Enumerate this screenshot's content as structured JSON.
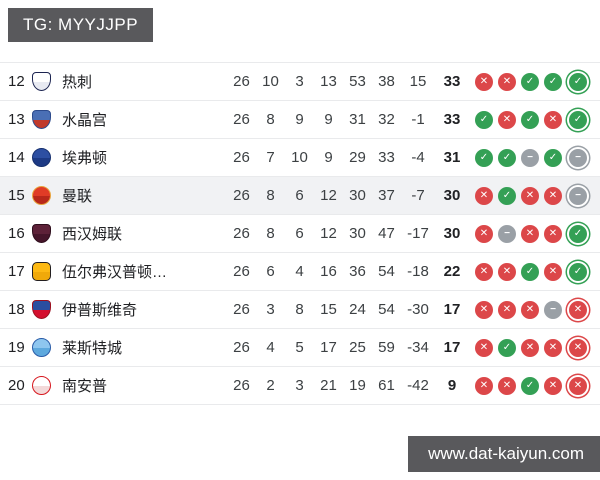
{
  "banner": {
    "text": "TG: MYYJJPP"
  },
  "watermark": {
    "text": "www.dat-kaiyun.com"
  },
  "colors": {
    "win": "#34a055",
    "loss": "#dc4749",
    "draw": "#9aa0a6",
    "row_highlight": "#f1f2f4",
    "banner_bg": "#59595c",
    "row_border": "#e9eaec"
  },
  "icons": {
    "win": "✓",
    "loss": "✕",
    "draw": "−"
  },
  "table": {
    "rows": [
      {
        "pos": "12",
        "team": "热刺",
        "played": "26",
        "wins": "10",
        "draws": "3",
        "losses": "13",
        "goals_for": "53",
        "goals_against": "38",
        "goal_diff": "15",
        "points": "33",
        "form": [
          "loss",
          "loss",
          "win",
          "win",
          "win"
        ],
        "highlighted": false,
        "badge": {
          "shape": "shield",
          "color1": "#ffffff",
          "color2": "#e8eaf2",
          "ring": "#1c2450"
        }
      },
      {
        "pos": "13",
        "team": "水晶宫",
        "played": "26",
        "wins": "8",
        "draws": "9",
        "losses": "9",
        "goals_for": "31",
        "goals_against": "32",
        "goal_diff": "-1",
        "points": "33",
        "form": [
          "win",
          "loss",
          "win",
          "loss",
          "win"
        ],
        "highlighted": false,
        "badge": {
          "shape": "shield",
          "color1": "#4a6fb5",
          "color2": "#c0392b",
          "ring": "#2c4a8c"
        }
      },
      {
        "pos": "14",
        "team": "埃弗顿",
        "played": "26",
        "wins": "7",
        "draws": "10",
        "losses": "9",
        "goals_for": "29",
        "goals_against": "33",
        "goal_diff": "-4",
        "points": "31",
        "form": [
          "win",
          "win",
          "draw",
          "win",
          "draw"
        ],
        "highlighted": false,
        "badge": {
          "shape": "circle",
          "color1": "#2d4fa2",
          "color2": "#1d3a85",
          "ring": "#16306f"
        }
      },
      {
        "pos": "15",
        "team": "曼联",
        "played": "26",
        "wins": "8",
        "draws": "6",
        "losses": "12",
        "goals_for": "30",
        "goals_against": "37",
        "goal_diff": "-7",
        "points": "30",
        "form": [
          "loss",
          "win",
          "loss",
          "loss",
          "draw"
        ],
        "highlighted": true,
        "badge": {
          "shape": "circle",
          "color1": "#e03c26",
          "color2": "#b8281a",
          "ring": "#e8a33c"
        }
      },
      {
        "pos": "16",
        "team": "西汉姆联",
        "played": "26",
        "wins": "8",
        "draws": "6",
        "losses": "12",
        "goals_for": "30",
        "goals_against": "47",
        "goal_diff": "-17",
        "points": "30",
        "form": [
          "loss",
          "draw",
          "loss",
          "loss",
          "win"
        ],
        "highlighted": false,
        "badge": {
          "shape": "shield",
          "color1": "#5d2138",
          "color2": "#45152a",
          "ring": "#2e0d1c"
        }
      },
      {
        "pos": "17",
        "team": "伍尔弗汉普顿…",
        "played": "26",
        "wins": "6",
        "draws": "4",
        "losses": "16",
        "goals_for": "36",
        "goals_against": "54",
        "goal_diff": "-18",
        "points": "22",
        "form": [
          "loss",
          "loss",
          "win",
          "loss",
          "win"
        ],
        "highlighted": false,
        "badge": {
          "shape": "hex",
          "color1": "#fdb913",
          "color2": "#f0a90a",
          "ring": "#231f20"
        }
      },
      {
        "pos": "18",
        "team": "伊普斯维奇",
        "played": "26",
        "wins": "3",
        "draws": "8",
        "losses": "15",
        "goals_for": "24",
        "goals_against": "54",
        "goal_diff": "-30",
        "points": "17",
        "form": [
          "loss",
          "loss",
          "loss",
          "draw",
          "loss"
        ],
        "highlighted": false,
        "badge": {
          "shape": "shield",
          "color1": "#2b4ea0",
          "color2": "#d40f2e",
          "ring": "#9c1020"
        }
      },
      {
        "pos": "19",
        "team": "莱斯特城",
        "played": "26",
        "wins": "4",
        "draws": "5",
        "losses": "17",
        "goals_for": "25",
        "goals_against": "59",
        "goal_diff": "-34",
        "points": "17",
        "form": [
          "loss",
          "win",
          "loss",
          "loss",
          "loss"
        ],
        "highlighted": false,
        "badge": {
          "shape": "circle",
          "color1": "#8ec6ef",
          "color2": "#5da8dd",
          "ring": "#2a5ca8"
        }
      },
      {
        "pos": "20",
        "team": "南安普",
        "played": "26",
        "wins": "2",
        "draws": "3",
        "losses": "21",
        "goals_for": "19",
        "goals_against": "61",
        "goal_diff": "-42",
        "points": "9",
        "form": [
          "loss",
          "loss",
          "win",
          "loss",
          "loss"
        ],
        "highlighted": false,
        "badge": {
          "shape": "circle",
          "color1": "#ffffff",
          "color2": "#f3d9d9",
          "ring": "#d71920"
        }
      }
    ]
  }
}
